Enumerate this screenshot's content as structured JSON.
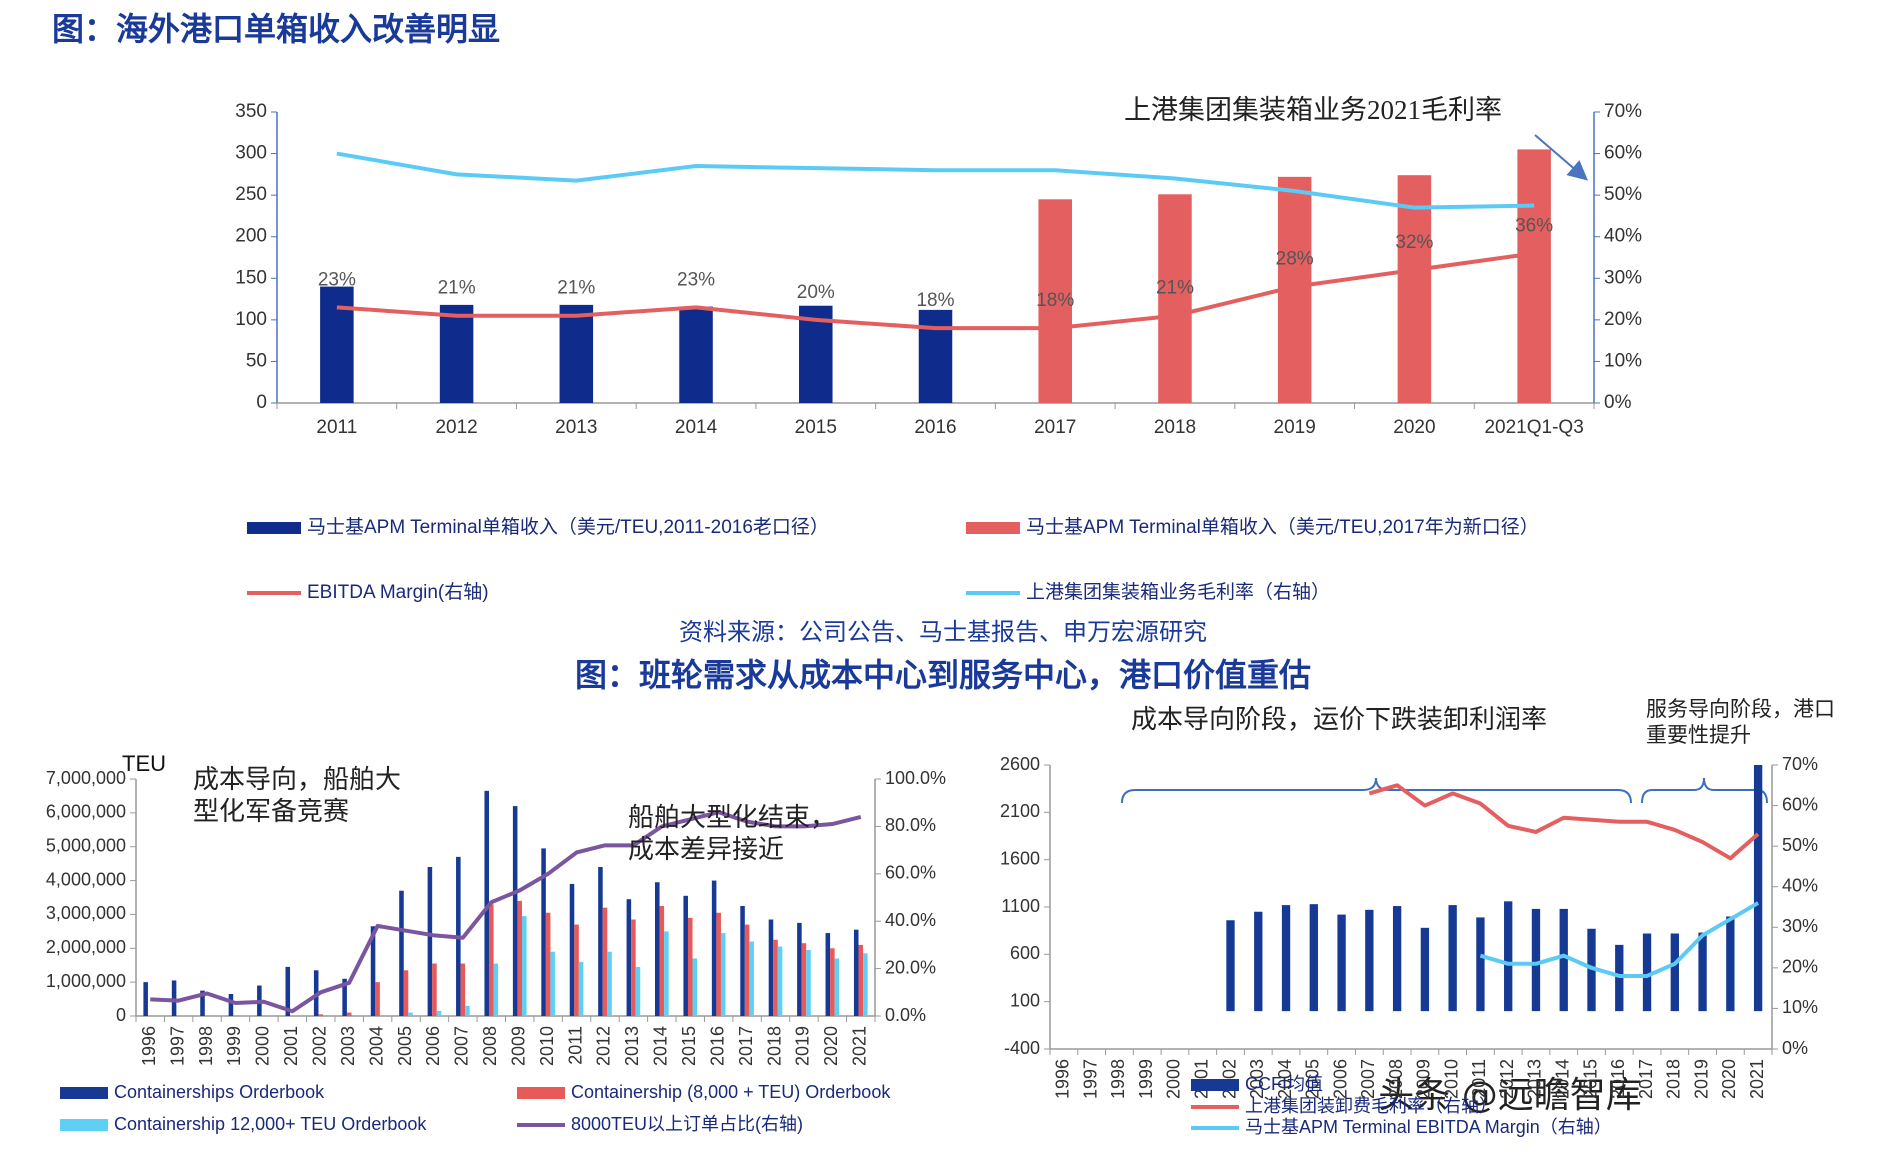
{
  "chart_data": [
    {
      "type": "bar",
      "title": "图：海外港口单箱收入改善明显",
      "source": "资料来源：公司公告、马士基报告、申万宏源研究",
      "categories": [
        "2011",
        "2012",
        "2013",
        "2014",
        "2015",
        "2016",
        "2017",
        "2018",
        "2019",
        "2020",
        "2021Q1-Q3"
      ],
      "series": [
        {
          "name": "马士基APM Terminal单箱收入（美元/TEU,2011-2016老口径）",
          "type": "bar",
          "color": "#0f2b8c",
          "values": [
            140,
            118,
            118,
            116,
            117,
            112,
            null,
            null,
            null,
            null,
            null
          ]
        },
        {
          "name": "马士基APM Terminal单箱收入（美元/TEU,2017年为新口径）",
          "type": "bar",
          "color": "#e45f5f",
          "values": [
            null,
            null,
            null,
            null,
            null,
            null,
            245,
            251,
            272,
            274,
            305
          ]
        },
        {
          "name": "EBITDA Margin(右轴)",
          "type": "line",
          "axis": "y2",
          "color": "#e45f5f",
          "values": [
            23,
            21,
            21,
            23,
            20,
            18,
            18,
            21,
            28,
            32,
            36
          ],
          "value_labels": [
            "23%",
            "21%",
            "21%",
            "23%",
            "20%",
            "18%",
            "18%",
            "21%",
            "28%",
            "32%",
            "36%"
          ]
        },
        {
          "name": "上港集团集装箱业务毛利率（右轴）",
          "type": "line",
          "axis": "y2",
          "color": "#5bcbf5",
          "values": [
            60,
            55,
            53.5,
            57,
            56.5,
            56,
            56,
            54,
            51,
            47,
            47.5
          ]
        }
      ],
      "ylim": [
        0,
        350
      ],
      "yticks": [
        0,
        50,
        100,
        150,
        200,
        250,
        300,
        350
      ],
      "y2lim": [
        0,
        70
      ],
      "y2ticks": [
        {
          "value": 0,
          "label": "0%"
        },
        {
          "value": 10,
          "label": "10%"
        },
        {
          "value": 20,
          "label": "20%"
        },
        {
          "value": 30,
          "label": "30%"
        },
        {
          "value": 40,
          "label": "40%"
        },
        {
          "value": 50,
          "label": "50%"
        },
        {
          "value": 60,
          "label": "60%"
        },
        {
          "value": 70,
          "label": "70%"
        }
      ],
      "annotations": [
        "上港集团集装箱业务2021毛利率"
      ]
    },
    {
      "type": "bar",
      "title": "图：班轮需求从成本中心到服务中心，港口价值重估",
      "y_label": "TEU",
      "categories": [
        "1996",
        "1997",
        "1998",
        "1999",
        "2000",
        "2001",
        "2002",
        "2003",
        "2004",
        "2005",
        "2006",
        "2007",
        "2008",
        "2009",
        "2010",
        "2011",
        "2012",
        "2013",
        "2014",
        "2015",
        "2016",
        "2017",
        "2018",
        "2019",
        "2020",
        "2021"
      ],
      "series": [
        {
          "name": "Containerships Orderbook",
          "type": "bar",
          "color": "#163a93",
          "values": [
            1000000,
            1050000,
            750000,
            650000,
            900000,
            1450000,
            1350000,
            1100000,
            2650000,
            3700000,
            4400000,
            4700000,
            6650000,
            6200000,
            4950000,
            3900000,
            4400000,
            3450000,
            3950000,
            3550000,
            4000000,
            3250000,
            2850000,
            2750000,
            2450000,
            2550000
          ]
        },
        {
          "name": "Containership (8,000 + TEU) Orderbook",
          "type": "bar",
          "color": "#e85a5a",
          "values": [
            0,
            0,
            0,
            0,
            0,
            0,
            50000,
            100000,
            1000000,
            1350000,
            1550000,
            1550000,
            3300000,
            3400000,
            3050000,
            2700000,
            3200000,
            2850000,
            3250000,
            2900000,
            3050000,
            2700000,
            2250000,
            2150000,
            2000000,
            2100000
          ]
        },
        {
          "name": "Containership 12,000+ TEU Orderbook",
          "type": "bar",
          "color": "#5fd0f5",
          "values": [
            0,
            0,
            0,
            0,
            0,
            0,
            0,
            0,
            0,
            100000,
            150000,
            300000,
            1550000,
            2950000,
            1900000,
            1600000,
            1900000,
            1450000,
            2500000,
            1700000,
            2450000,
            2200000,
            2050000,
            1950000,
            1700000,
            1850000
          ]
        },
        {
          "name": "8000TEU以上订单占比(右轴)",
          "type": "line",
          "axis": "y2",
          "color": "#7a55a0",
          "values": [
            7,
            6.5,
            9.5,
            5.5,
            6,
            2,
            10,
            14,
            38,
            36,
            34,
            33,
            48,
            53,
            60,
            69,
            72,
            72,
            80,
            83,
            86,
            82,
            80,
            80,
            81,
            84
          ]
        }
      ],
      "ylim": [
        0,
        7000000
      ],
      "yticks": [
        0,
        {
          "value": 1000000,
          "label": "1,000,000"
        },
        {
          "value": 2000000,
          "label": "2,000,000"
        },
        {
          "value": 3000000,
          "label": "3,000,000"
        },
        {
          "value": 4000000,
          "label": "4,000,000"
        },
        {
          "value": 5000000,
          "label": "5,000,000"
        },
        {
          "value": 6000000,
          "label": "6,000,000"
        },
        {
          "value": 7000000,
          "label": "7,000,000"
        }
      ],
      "y2lim": [
        0,
        100
      ],
      "y2ticks": [
        {
          "value": 0,
          "label": "0.0%"
        },
        {
          "value": 20,
          "label": "20.0%"
        },
        {
          "value": 40,
          "label": "40.0%"
        },
        {
          "value": 60,
          "label": "60.0%"
        },
        {
          "value": 80,
          "label": "80.0%"
        },
        {
          "value": 100,
          "label": "100.0%"
        }
      ],
      "annotations": [
        "成本导向，船舶大型化军备竞赛",
        "船舶大型化结束，成本差异接近"
      ]
    },
    {
      "type": "bar",
      "categories": [
        "1996",
        "1997",
        "1998",
        "1999",
        "2000",
        "2001",
        "2002",
        "2003",
        "2004",
        "2005",
        "2006",
        "2007",
        "2008",
        "2009",
        "2010",
        "2011",
        "2012",
        "2013",
        "2014",
        "2015",
        "2016",
        "2017",
        "2018",
        "2019",
        "2020",
        "2021"
      ],
      "series": [
        {
          "name": "CCFI均值",
          "type": "bar",
          "color": "#163a93",
          "values": [
            null,
            null,
            null,
            null,
            null,
            null,
            960,
            1050,
            1120,
            1130,
            1020,
            1070,
            1110,
            880,
            1120,
            990,
            1160,
            1080,
            1080,
            870,
            700,
            820,
            820,
            830,
            1000,
            2600
          ]
        },
        {
          "name": "上港集团装卸费毛利率（右轴）",
          "type": "line",
          "axis": "y2",
          "color": "#e45f5f",
          "values": [
            null,
            null,
            null,
            null,
            null,
            null,
            null,
            null,
            null,
            null,
            null,
            63,
            65,
            60,
            63,
            60.5,
            55,
            53.5,
            57,
            56.5,
            56,
            56,
            54,
            51,
            47,
            53
          ]
        },
        {
          "name": "马士基APM Terminal EBITDA Margin（右轴）",
          "type": "line",
          "axis": "y2",
          "color": "#5bcbf5",
          "values": [
            null,
            null,
            null,
            null,
            null,
            null,
            null,
            null,
            null,
            null,
            null,
            null,
            null,
            null,
            null,
            23,
            21,
            21,
            23,
            20,
            18,
            18,
            21,
            28,
            32,
            36
          ]
        }
      ],
      "ylim": [
        -400,
        2600
      ],
      "yticks": [
        -400,
        100,
        600,
        1100,
        1600,
        2100,
        2600
      ],
      "y2lim": [
        0,
        70
      ],
      "y2ticks": [
        {
          "value": 0,
          "label": "0%"
        },
        {
          "value": 10,
          "label": "10%"
        },
        {
          "value": 20,
          "label": "20%"
        },
        {
          "value": 30,
          "label": "30%"
        },
        {
          "value": 40,
          "label": "40%"
        },
        {
          "value": 50,
          "label": "50%"
        },
        {
          "value": 60,
          "label": "60%"
        },
        {
          "value": 70,
          "label": "70%"
        }
      ],
      "annotations": [
        "成本导向阶段，运价下跌装卸利润率",
        "服务导向阶段，港口重要性提升"
      ]
    }
  ],
  "watermark": "头条 @远瞻智库"
}
